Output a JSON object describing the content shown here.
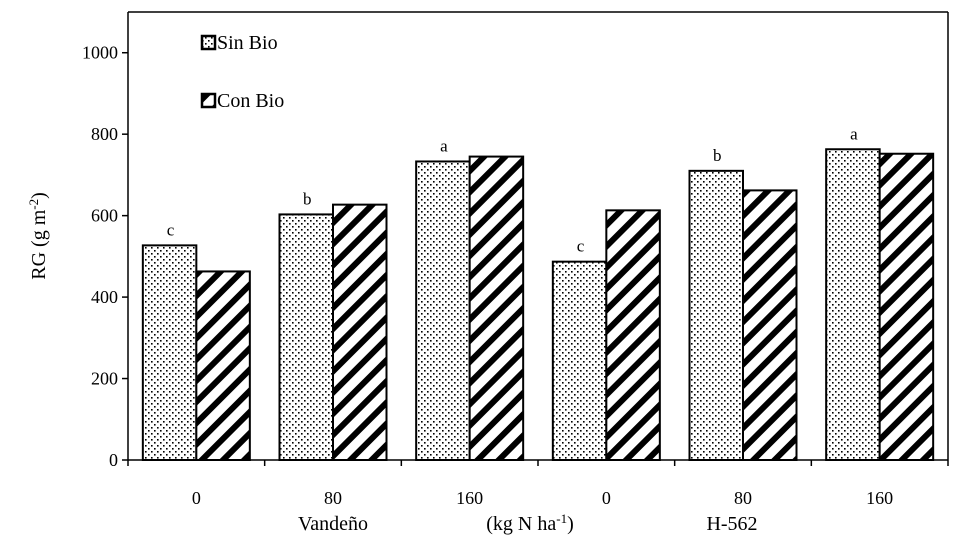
{
  "chart_data": {
    "type": "bar",
    "categories": [
      "0",
      "80",
      "160",
      "0",
      "80",
      "160"
    ],
    "groups": [
      {
        "label": "Vandeño",
        "categories": [
          "0",
          "80",
          "160"
        ]
      },
      {
        "label": "H-562",
        "categories": [
          "0",
          "80",
          "160"
        ]
      }
    ],
    "x_unit_label": "(kg N ha-1)",
    "ylabel": "RG (g m-2)",
    "ylim": [
      0,
      1100
    ],
    "yticks": [
      "0",
      "200",
      "400",
      "600",
      "800",
      "1000"
    ],
    "series": [
      {
        "name": "Sin Bio",
        "pattern": "dots",
        "values": [
          527,
          603,
          733,
          487,
          710,
          763
        ]
      },
      {
        "name": "Con Bio",
        "pattern": "diagonal-stripes",
        "values": [
          463,
          627,
          745,
          613,
          662,
          752
        ]
      }
    ],
    "significance_letters": [
      "c",
      "b",
      "a",
      "c",
      "b",
      "a"
    ],
    "legend_position": "top-left",
    "grid": false
  }
}
